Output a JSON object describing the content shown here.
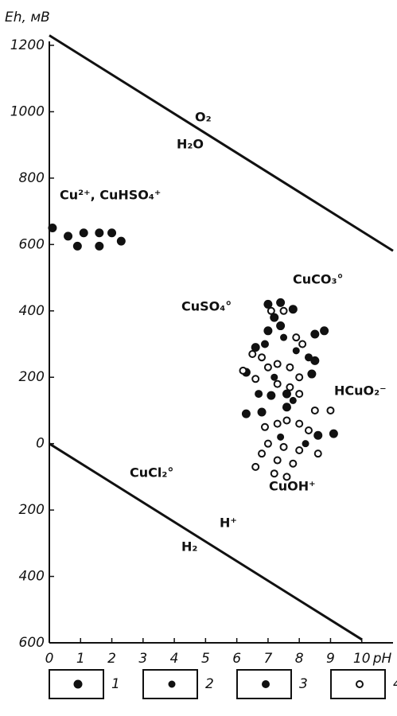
{
  "chart_data": {
    "type": "scatter",
    "y_label": "Eh, мВ",
    "x_label": "pH",
    "xlim": [
      0,
      11
    ],
    "ylim": [
      -600,
      1200
    ],
    "xticks": [
      0,
      1,
      2,
      3,
      4,
      5,
      6,
      7,
      8,
      9,
      10
    ],
    "yticks": [
      1200,
      1000,
      800,
      600,
      400,
      200,
      0,
      {
        "value": -200,
        "label": "200"
      },
      {
        "value": -400,
        "label": "400"
      },
      {
        "value": -600,
        "label": "600"
      }
    ],
    "lines": [
      {
        "x": [
          0,
          11
        ],
        "values": [
          1230,
          581
        ],
        "color": "#111"
      },
      {
        "x": [
          0,
          10
        ],
        "values": [
          0,
          -590
        ],
        "color": "#111"
      }
    ],
    "annotations": [
      "O₂",
      "H₂O",
      "Cu²⁺, CuHSO₄⁺",
      "CuCO₃°",
      "CuSO₄°",
      "HCuO₂⁻",
      "CuOH⁺",
      "CuCl₂°",
      "H⁺",
      "H₂"
    ],
    "series": [
      {
        "name": "1",
        "color": "#111",
        "marker": "filled",
        "x": [
          0.1,
          0.6,
          0.9,
          1.1,
          1.6,
          1.6,
          2.0,
          2.3,
          7.0,
          7.4,
          7.8,
          7.2,
          7.4,
          7.0,
          8.8,
          8.5,
          8.4,
          8.5,
          6.6,
          6.3,
          6.8,
          7.1,
          7.6,
          7.6,
          8.6,
          9.1,
          6.3
        ],
        "values": [
          650,
          625,
          595,
          635,
          635,
          595,
          635,
          610,
          420,
          425,
          405,
          380,
          355,
          340,
          340,
          330,
          210,
          250,
          290,
          90,
          95,
          145,
          150,
          110,
          25,
          30,
          215
        ]
      },
      {
        "name": "2",
        "color": "#111",
        "marker": "filled",
        "x": [
          7.5,
          7.9,
          7.2,
          7.8,
          7.4,
          8.2
        ],
        "values": [
          320,
          280,
          200,
          130,
          20,
          0
        ]
      },
      {
        "name": "3",
        "color": "#111",
        "marker": "filled",
        "x": [
          6.9,
          8.3,
          6.7
        ],
        "values": [
          300,
          260,
          150
        ]
      },
      {
        "name": "4",
        "color": "#111",
        "marker": "open",
        "x": [
          7.1,
          7.5,
          7.9,
          8.1,
          6.5,
          6.8,
          7.0,
          7.3,
          7.7,
          8.0,
          6.2,
          6.6,
          7.3,
          7.7,
          8.0,
          8.5,
          6.9,
          7.3,
          7.6,
          8.0,
          8.3,
          7.0,
          7.5,
          8.0,
          6.8,
          7.3,
          7.8,
          7.2,
          7.6,
          6.6,
          8.6,
          9.0
        ],
        "values": [
          400,
          400,
          320,
          300,
          270,
          260,
          230,
          240,
          230,
          200,
          220,
          195,
          180,
          170,
          150,
          100,
          50,
          60,
          70,
          60,
          40,
          0,
          -10,
          -20,
          -30,
          -50,
          -60,
          -90,
          -100,
          -70,
          -30,
          100
        ]
      }
    ]
  }
}
